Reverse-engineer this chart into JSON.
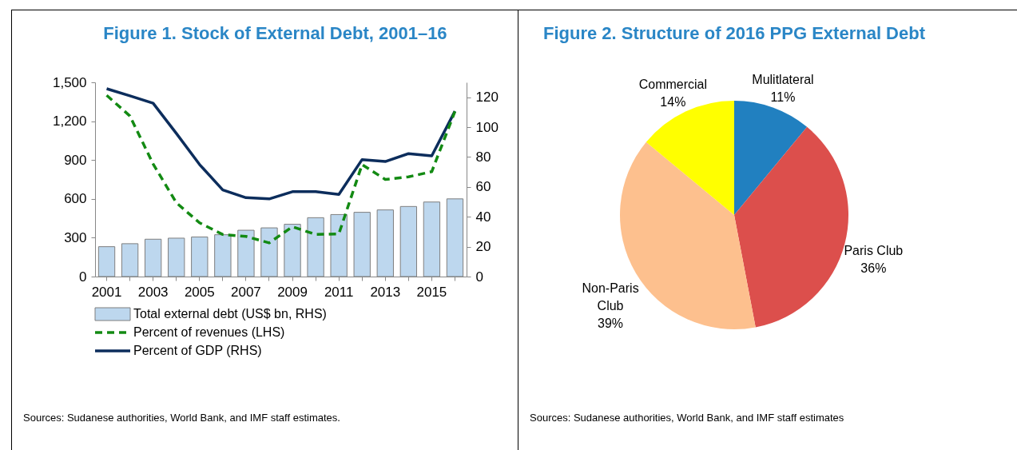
{
  "chart_data": [
    {
      "type": "bar",
      "title": "Figure 1. Stock of External Debt, 2001–16",
      "categories": [
        "2001",
        null,
        "2003",
        null,
        "2005",
        null,
        "2007",
        null,
        "2009",
        null,
        "2011",
        null,
        "2013",
        null,
        "2015",
        null
      ],
      "series": [
        {
          "name": "Total external debt (US$ bn, RHS)",
          "type": "bar",
          "axis": "y2",
          "color": "#bdd7ee",
          "values": [
            20,
            22,
            25,
            25.7,
            26.5,
            28,
            31,
            32.6,
            35,
            39.4,
            41.5,
            43,
            44.6,
            46.9,
            49.9,
            52
          ]
        },
        {
          "name": "Percent of revenues (LHS)",
          "type": "line",
          "color": "#138a13",
          "line_style": "dashed",
          "values": [
            1400,
            1240,
            870,
            570,
            415,
            325,
            310,
            260,
            385,
            325,
            330,
            865,
            750,
            770,
            810,
            1275
          ]
        },
        {
          "name": "Percent of GDP (RHS)",
          "type": "line",
          "axis": "y2",
          "color": "#0c2d5c",
          "line_style": "solid",
          "values": [
            125.7,
            121,
            116,
            95.8,
            75,
            58,
            52.8,
            52,
            56.8,
            56.8,
            55,
            78.3,
            77,
            82.3,
            80.8,
            110.7
          ]
        }
      ],
      "ylim": [
        0,
        1500
      ],
      "yticks": [
        0,
        300,
        600,
        900,
        {
          "value": 1200,
          "label": "1,200"
        },
        {
          "value": 1500,
          "label": "1,500"
        }
      ],
      "y2lim": [
        0,
        130
      ],
      "y2ticks": [
        0,
        20,
        40,
        60,
        80,
        100,
        120
      ],
      "legend": "bottom",
      "grid": false,
      "annotations": [
        "Sources: Sudanese authorities, World Bank, and IMF staff estimates."
      ]
    },
    {
      "type": "pie",
      "title": "Figure 2. Structure of 2016 PPG External Debt",
      "categories": [
        "Mulitlateral",
        "Paris Club",
        "Non-Paris Club",
        "Commercial"
      ],
      "values": [
        11,
        36,
        39,
        14
      ],
      "value_labels": [
        "11%",
        "36%",
        "39%",
        "14%"
      ],
      "colors": [
        "#2180c0",
        "#dc4f4c",
        "#fdc08e",
        "#ffff00"
      ],
      "annotations": [
        "Sources: Sudanese authorities, World Bank, and IMF staff estimates"
      ]
    }
  ]
}
